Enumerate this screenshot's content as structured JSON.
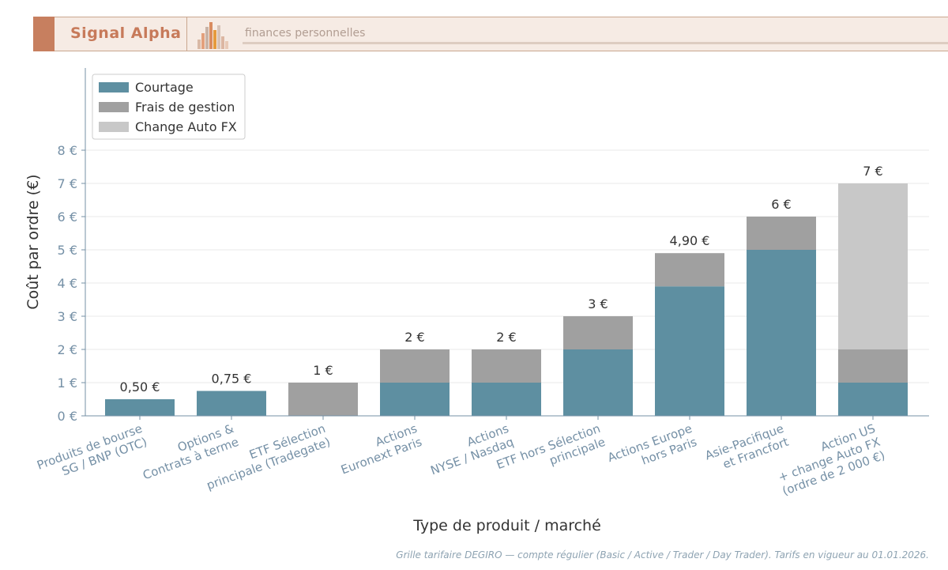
{
  "header": {
    "brand": "Signal Alpha",
    "tagline": "finances personnelles"
  },
  "footnote": "Grille tarifaire DEGIRO — compte régulier (Basic / Active / Trader / Day Trader). Tarifs en vigueur au 01.01.2026.",
  "colors": {
    "courtage": "#5e8fa1",
    "frais": "#a0a0a0",
    "change": "#c8c8c8",
    "tick": "#7590a6",
    "text": "#333333"
  },
  "chart_data": {
    "type": "bar",
    "stacked": true,
    "title": "",
    "xlabel": "Type de produit / marché",
    "ylabel": "Coût par ordre (€)",
    "ylim": [
      0,
      8
    ],
    "y_ticks": [
      "0 €",
      "1 €",
      "2 €",
      "3 €",
      "4 €",
      "5 €",
      "6 €",
      "7 €",
      "8 €"
    ],
    "grid": true,
    "legend_position": "top-left",
    "categories": [
      "Produits de bourse\nSG / BNP (OTC)",
      "Options &\nContrats à terme",
      "ETF Sélection\nprincipale (Tradegate)",
      "Actions\nEuronext Paris",
      "Actions\nNYSE / Nasdaq",
      "ETF hors Sélection\nprincipale",
      "Actions Europe\nhors Paris",
      "Asie-Pacifique\net Francfort",
      "Action US\n+ change Auto FX\n(ordre de 2 000 €)"
    ],
    "series": [
      {
        "name": "Courtage",
        "values": [
          0.5,
          0.75,
          0,
          1,
          1,
          2,
          3.9,
          5,
          1
        ]
      },
      {
        "name": "Frais de gestion",
        "values": [
          0,
          0,
          1,
          1,
          1,
          1,
          1,
          1,
          1
        ]
      },
      {
        "name": "Change Auto FX",
        "values": [
          0,
          0,
          0,
          0,
          0,
          0,
          0,
          0,
          5
        ]
      }
    ],
    "totals_labels": [
      "0,50 €",
      "0,75 €",
      "1 €",
      "2 €",
      "2 €",
      "3 €",
      "4,90 €",
      "6 €",
      "7 €"
    ]
  }
}
